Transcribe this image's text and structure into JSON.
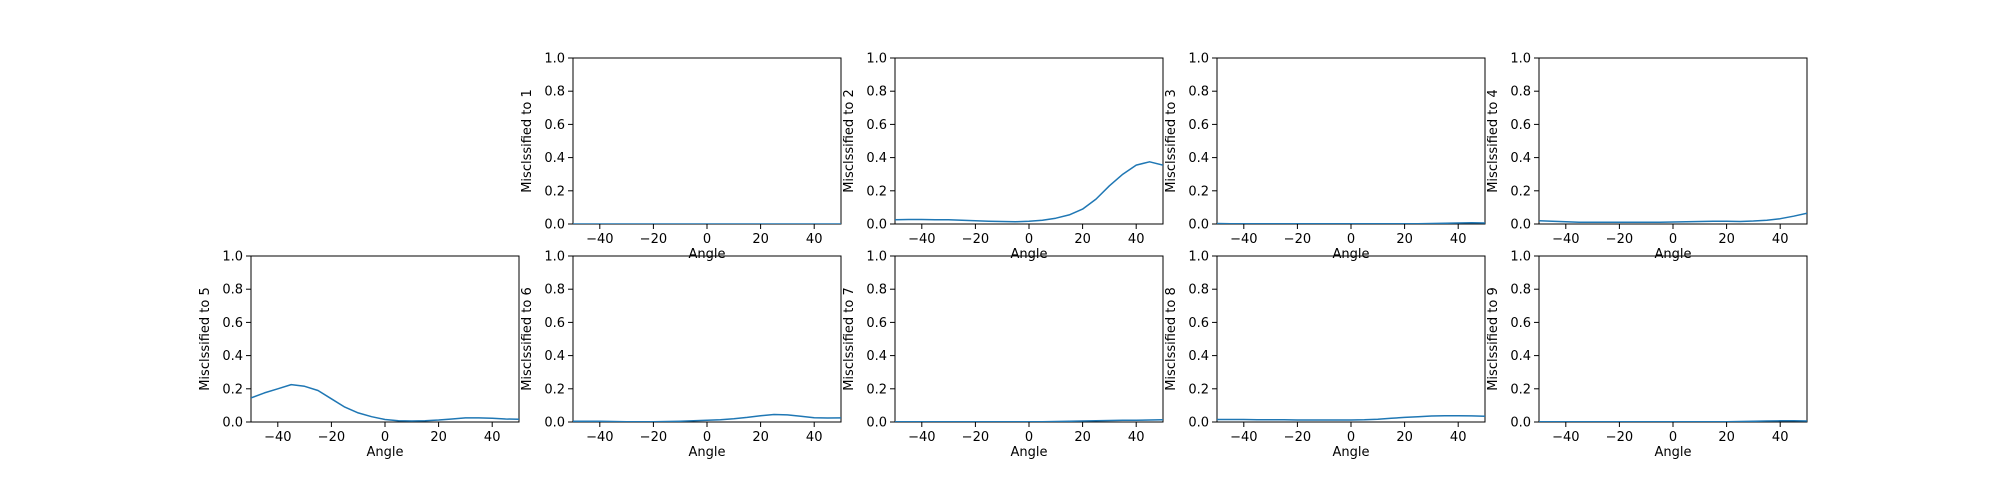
{
  "chart_data": [
    {
      "type": "line",
      "panel": "row1-col2",
      "xlabel": "Angle",
      "ylabel": "Misclssified to 1",
      "xlim": [
        -50,
        50
      ],
      "ylim": [
        0,
        1
      ],
      "xticks": [
        -40,
        -20,
        0,
        20,
        40
      ],
      "yticks": [
        0.0,
        0.2,
        0.4,
        0.6,
        0.8,
        1.0
      ],
      "grid": false,
      "color": "#1f77b4",
      "series": [
        {
          "x": [
            -50,
            -45,
            -40,
            -35,
            -30,
            -25,
            -20,
            -15,
            -10,
            -5,
            0,
            5,
            10,
            15,
            20,
            25,
            30,
            35,
            40,
            45,
            50
          ],
          "values": [
            0,
            0,
            0,
            0,
            0,
            0,
            0,
            0,
            0,
            0,
            0,
            0,
            0,
            0,
            0,
            0,
            0,
            0,
            0,
            0,
            0
          ]
        }
      ]
    },
    {
      "type": "line",
      "panel": "row1-col3",
      "xlabel": "Angle",
      "ylabel": "Misclssified to 2",
      "xlim": [
        -50,
        50
      ],
      "ylim": [
        0,
        1
      ],
      "xticks": [
        -40,
        -20,
        0,
        20,
        40
      ],
      "yticks": [
        0.0,
        0.2,
        0.4,
        0.6,
        0.8,
        1.0
      ],
      "grid": false,
      "color": "#1f77b4",
      "series": [
        {
          "x": [
            -50,
            -45,
            -40,
            -35,
            -30,
            -25,
            -20,
            -15,
            -10,
            -5,
            0,
            5,
            10,
            15,
            20,
            25,
            30,
            35,
            40,
            45,
            50
          ],
          "values": [
            0.025,
            0.027,
            0.027,
            0.026,
            0.025,
            0.023,
            0.02,
            0.017,
            0.015,
            0.014,
            0.016,
            0.022,
            0.035,
            0.055,
            0.09,
            0.15,
            0.23,
            0.3,
            0.355,
            0.375,
            0.355
          ]
        }
      ]
    },
    {
      "type": "line",
      "panel": "row1-col4",
      "xlabel": "Angle",
      "ylabel": "Misclssified to 3",
      "xlim": [
        -50,
        50
      ],
      "ylim": [
        0,
        1
      ],
      "xticks": [
        -40,
        -20,
        0,
        20,
        40
      ],
      "yticks": [
        0.0,
        0.2,
        0.4,
        0.6,
        0.8,
        1.0
      ],
      "grid": false,
      "color": "#1f77b4",
      "series": [
        {
          "x": [
            -50,
            -45,
            -40,
            -35,
            -30,
            -25,
            -20,
            -15,
            -10,
            -5,
            0,
            5,
            10,
            15,
            20,
            25,
            30,
            35,
            40,
            45,
            50
          ],
          "values": [
            0.003,
            0.002,
            0.002,
            0.002,
            0.002,
            0.002,
            0.002,
            0.002,
            0.002,
            0.002,
            0.002,
            0.002,
            0.002,
            0.002,
            0.002,
            0.002,
            0.003,
            0.004,
            0.006,
            0.007,
            0.006
          ]
        }
      ]
    },
    {
      "type": "line",
      "panel": "row1-col5",
      "xlabel": "Angle",
      "ylabel": "Misclssified to 4",
      "xlim": [
        -50,
        50
      ],
      "ylim": [
        0,
        1
      ],
      "xticks": [
        -40,
        -20,
        0,
        20,
        40
      ],
      "yticks": [
        0.0,
        0.2,
        0.4,
        0.6,
        0.8,
        1.0
      ],
      "grid": false,
      "color": "#1f77b4",
      "series": [
        {
          "x": [
            -50,
            -45,
            -40,
            -35,
            -30,
            -25,
            -20,
            -15,
            -10,
            -5,
            0,
            5,
            10,
            15,
            20,
            25,
            30,
            35,
            40,
            45,
            50
          ],
          "values": [
            0.02,
            0.016,
            0.013,
            0.011,
            0.01,
            0.01,
            0.01,
            0.01,
            0.011,
            0.011,
            0.012,
            0.013,
            0.015,
            0.016,
            0.016,
            0.015,
            0.018,
            0.023,
            0.032,
            0.047,
            0.065
          ]
        }
      ]
    },
    {
      "type": "line",
      "panel": "row2-col1",
      "xlabel": "Angle",
      "ylabel": "Misclssified to 5",
      "xlim": [
        -50,
        50
      ],
      "ylim": [
        0,
        1
      ],
      "xticks": [
        -40,
        -20,
        0,
        20,
        40
      ],
      "yticks": [
        0.0,
        0.2,
        0.4,
        0.6,
        0.8,
        1.0
      ],
      "grid": false,
      "color": "#1f77b4",
      "series": [
        {
          "x": [
            -50,
            -45,
            -40,
            -35,
            -30,
            -25,
            -20,
            -15,
            -10,
            -5,
            0,
            5,
            10,
            15,
            20,
            25,
            30,
            35,
            40,
            45,
            50
          ],
          "values": [
            0.145,
            0.175,
            0.2,
            0.225,
            0.215,
            0.19,
            0.14,
            0.09,
            0.055,
            0.032,
            0.015,
            0.008,
            0.006,
            0.008,
            0.012,
            0.018,
            0.025,
            0.025,
            0.022,
            0.018,
            0.016
          ]
        }
      ]
    },
    {
      "type": "line",
      "panel": "row2-col2",
      "xlabel": "Angle",
      "ylabel": "Misclssified to 6",
      "xlim": [
        -50,
        50
      ],
      "ylim": [
        0,
        1
      ],
      "xticks": [
        -40,
        -20,
        0,
        20,
        40
      ],
      "yticks": [
        0.0,
        0.2,
        0.4,
        0.6,
        0.8,
        1.0
      ],
      "grid": false,
      "color": "#1f77b4",
      "series": [
        {
          "x": [
            -50,
            -45,
            -40,
            -35,
            -30,
            -25,
            -20,
            -15,
            -10,
            -5,
            0,
            5,
            10,
            15,
            20,
            25,
            30,
            35,
            40,
            45,
            50
          ],
          "values": [
            0.005,
            0.005,
            0.004,
            0.003,
            0.002,
            0.002,
            0.002,
            0.003,
            0.005,
            0.008,
            0.01,
            0.014,
            0.02,
            0.028,
            0.038,
            0.045,
            0.043,
            0.035,
            0.026,
            0.024,
            0.025
          ]
        }
      ]
    },
    {
      "type": "line",
      "panel": "row2-col3",
      "xlabel": "Angle",
      "ylabel": "Misclssified to 7",
      "xlim": [
        -50,
        50
      ],
      "ylim": [
        0,
        1
      ],
      "xticks": [
        -40,
        -20,
        0,
        20,
        40
      ],
      "yticks": [
        0.0,
        0.2,
        0.4,
        0.6,
        0.8,
        1.0
      ],
      "grid": false,
      "color": "#1f77b4",
      "series": [
        {
          "x": [
            -50,
            -45,
            -40,
            -35,
            -30,
            -25,
            -20,
            -15,
            -10,
            -5,
            0,
            5,
            10,
            15,
            20,
            25,
            30,
            35,
            40,
            45,
            50
          ],
          "values": [
            0.002,
            0.002,
            0.002,
            0.002,
            0.002,
            0.002,
            0.002,
            0.002,
            0.002,
            0.002,
            0.002,
            0.002,
            0.003,
            0.004,
            0.006,
            0.008,
            0.009,
            0.01,
            0.011,
            0.012,
            0.013
          ]
        }
      ]
    },
    {
      "type": "line",
      "panel": "row2-col4",
      "xlabel": "Angle",
      "ylabel": "Misclssified to 8",
      "xlim": [
        -50,
        50
      ],
      "ylim": [
        0,
        1
      ],
      "xticks": [
        -40,
        -20,
        0,
        20,
        40
      ],
      "yticks": [
        0.0,
        0.2,
        0.4,
        0.6,
        0.8,
        1.0
      ],
      "grid": false,
      "color": "#1f77b4",
      "series": [
        {
          "x": [
            -50,
            -45,
            -40,
            -35,
            -30,
            -25,
            -20,
            -15,
            -10,
            -5,
            0,
            5,
            10,
            15,
            20,
            25,
            30,
            35,
            40,
            45,
            50
          ],
          "values": [
            0.015,
            0.015,
            0.015,
            0.014,
            0.013,
            0.013,
            0.012,
            0.012,
            0.012,
            0.012,
            0.012,
            0.013,
            0.017,
            0.022,
            0.028,
            0.032,
            0.036,
            0.038,
            0.038,
            0.037,
            0.035
          ]
        }
      ]
    },
    {
      "type": "line",
      "panel": "row2-col5",
      "xlabel": "Angle",
      "ylabel": "Misclssified to 9",
      "xlim": [
        -50,
        50
      ],
      "ylim": [
        0,
        1
      ],
      "xticks": [
        -40,
        -20,
        0,
        20,
        40
      ],
      "yticks": [
        0.0,
        0.2,
        0.4,
        0.6,
        0.8,
        1.0
      ],
      "grid": false,
      "color": "#1f77b4",
      "series": [
        {
          "x": [
            -50,
            -45,
            -40,
            -35,
            -30,
            -25,
            -20,
            -15,
            -10,
            -5,
            0,
            5,
            10,
            15,
            20,
            25,
            30,
            35,
            40,
            45,
            50
          ],
          "values": [
            0.002,
            0.002,
            0.002,
            0.002,
            0.002,
            0.002,
            0.002,
            0.002,
            0.002,
            0.002,
            0.002,
            0.002,
            0.002,
            0.002,
            0.002,
            0.003,
            0.004,
            0.006,
            0.007,
            0.007,
            0.006
          ]
        }
      ]
    }
  ]
}
